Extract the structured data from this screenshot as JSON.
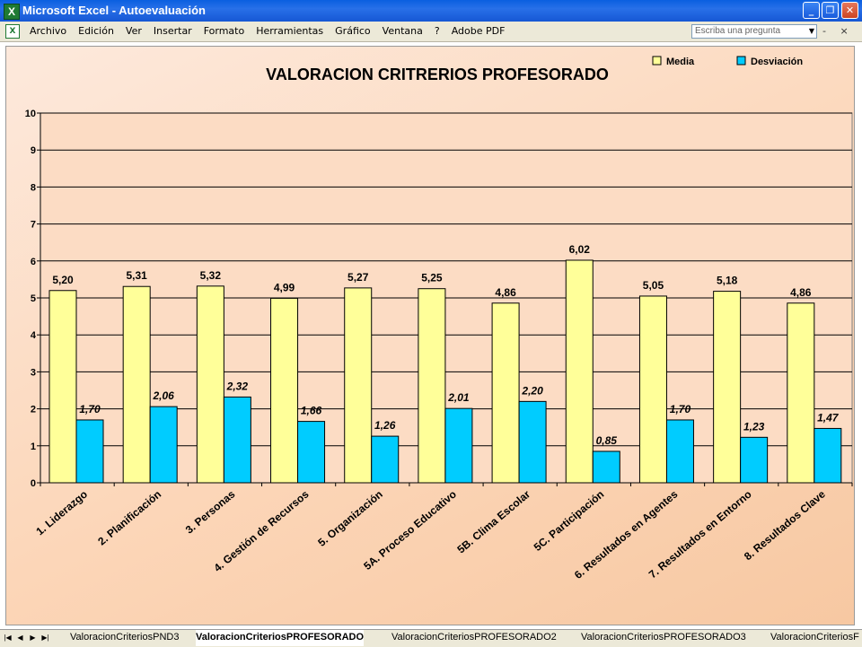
{
  "window": {
    "title": "Microsoft Excel - Autoevaluación",
    "app_icon": "excel-icon"
  },
  "menu": {
    "items": [
      "Archivo",
      "Edición",
      "Ver",
      "Insertar",
      "Formato",
      "Herramientas",
      "Gráfico",
      "Ventana",
      "?",
      "Adobe PDF"
    ]
  },
  "ask": {
    "placeholder": "Escriba una pregunta"
  },
  "sheets": {
    "tabs": [
      "ValoracionCriteriosPND3",
      "ValoracionCriteriosPROFESORADO",
      "ValoracionCriteriosPROFESORADO2",
      "ValoracionCriteriosPROFESORADO3",
      "ValoracionCriteriosF"
    ],
    "active_index": 1
  },
  "chart_data": {
    "type": "bar",
    "title": "VALORACION CRITRERIOS PROFESORADO",
    "categories": [
      "1. Liderazgo",
      "2. Planificación",
      "3. Personas",
      "4. Gestión de Recursos",
      "5. Organización",
      "5A. Proceso Educativo",
      "5B. Clima Escolar",
      "5C. Participación",
      "6. Resultados en Agentes",
      "7. Resultados en Entorno",
      "8. Resultados Clave"
    ],
    "series": [
      {
        "name": "Media",
        "color": "#ffff99",
        "values": [
          5.2,
          5.31,
          5.32,
          4.99,
          5.27,
          5.25,
          4.86,
          6.02,
          5.05,
          5.18,
          4.86
        ],
        "labels": [
          "5,20",
          "5,31",
          "5,32",
          "4,99",
          "5,27",
          "5,25",
          "4,86",
          "6,02",
          "5,05",
          "5,18",
          "4,86"
        ]
      },
      {
        "name": "Desviación",
        "color": "#00ccff",
        "values": [
          1.7,
          2.06,
          2.32,
          1.66,
          1.26,
          2.01,
          2.2,
          0.85,
          1.7,
          1.23,
          1.47
        ],
        "labels": [
          "1,70",
          "2,06",
          "2,32",
          "1,66",
          "1,26",
          "2,01",
          "2,20",
          "0,85",
          "1,70",
          "1,23",
          "1,47"
        ]
      }
    ],
    "ylim": [
      0,
      10
    ],
    "yticks": [
      "0",
      "1",
      "2",
      "3",
      "4",
      "5",
      "6",
      "7",
      "8",
      "9",
      "10"
    ],
    "grid": true,
    "legend": "top-right",
    "plot_background": "#fcdcc4"
  }
}
